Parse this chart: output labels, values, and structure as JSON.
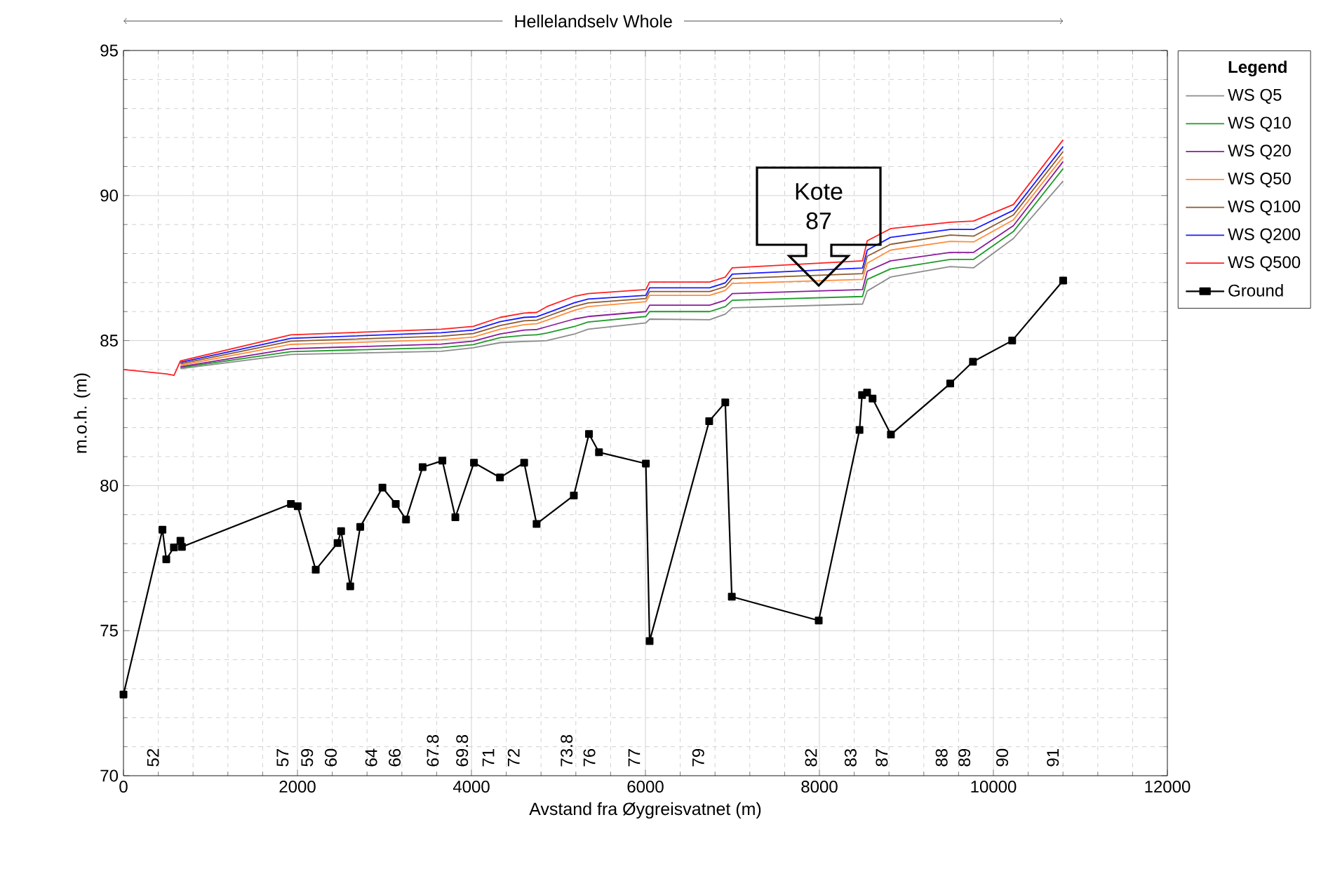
{
  "chart_data": {
    "type": "line",
    "title": "Hellelandselv Whole",
    "xlabel": "Avstand fra Øygreisvatnet (m)",
    "ylabel": "m.o.h. (m)",
    "legend_title": "Legend",
    "xlim": [
      0,
      12000
    ],
    "ylim": [
      70,
      95
    ],
    "xticks": [
      0,
      2000,
      4000,
      6000,
      8000,
      10000,
      12000
    ],
    "yticks": [
      70,
      75,
      80,
      85,
      90,
      95
    ],
    "grid": true,
    "legend": "right",
    "marker": "none",
    "line_style": "solid",
    "x": [
      0,
      494,
      581,
      655,
      1925,
      3652,
      4020,
      4330,
      4606,
      4749,
      4867,
      5178,
      5342,
      6005,
      6048,
      6739,
      6918,
      6998,
      8496,
      8550,
      8819,
      9504,
      9773,
      10230,
      10802
    ],
    "series": [
      {
        "name": "WS Q5",
        "color": "#8c8c8c",
        "values": [
          null,
          null,
          null,
          84.03,
          84.52,
          84.63,
          84.75,
          84.93,
          84.97,
          84.98,
          85.0,
          85.22,
          85.39,
          85.61,
          85.74,
          85.72,
          85.91,
          86.13,
          86.26,
          86.71,
          87.19,
          87.55,
          87.51,
          88.52,
          90.5
        ]
      },
      {
        "name": "WS Q10",
        "color": "#1f9a2a",
        "values": [
          null,
          null,
          null,
          84.07,
          84.62,
          84.76,
          84.86,
          85.1,
          85.18,
          85.2,
          85.26,
          85.48,
          85.64,
          85.83,
          86.0,
          86.0,
          86.17,
          86.39,
          86.52,
          87.11,
          87.47,
          87.8,
          87.8,
          88.76,
          90.93
        ]
      },
      {
        "name": "WS Q20",
        "color": "#8b1a9b",
        "values": [
          null,
          null,
          null,
          84.1,
          84.72,
          84.88,
          84.98,
          85.23,
          85.36,
          85.38,
          85.48,
          85.74,
          85.83,
          86.0,
          86.22,
          86.22,
          86.39,
          86.62,
          86.76,
          87.39,
          87.75,
          88.04,
          88.04,
          88.96,
          91.17
        ]
      },
      {
        "name": "WS Q50",
        "color": "#ff8c3c",
        "values": [
          null,
          null,
          null,
          84.15,
          84.87,
          85.03,
          85.12,
          85.39,
          85.55,
          85.58,
          85.7,
          86.04,
          86.17,
          86.34,
          86.56,
          86.56,
          86.73,
          86.97,
          87.11,
          87.67,
          88.12,
          88.42,
          88.4,
          89.16,
          91.34
        ]
      },
      {
        "name": "WS Q100",
        "color": "#8b5a2b",
        "values": [
          null,
          null,
          null,
          84.2,
          84.98,
          85.15,
          85.24,
          85.52,
          85.68,
          85.7,
          85.83,
          86.17,
          86.3,
          86.45,
          86.69,
          86.69,
          86.86,
          87.14,
          87.31,
          87.91,
          88.32,
          88.64,
          88.6,
          89.33,
          91.52
        ]
      },
      {
        "name": "WS Q200",
        "color": "#1a1aff",
        "values": [
          null,
          null,
          null,
          84.25,
          85.08,
          85.27,
          85.36,
          85.65,
          85.8,
          85.82,
          85.95,
          86.3,
          86.43,
          86.56,
          86.82,
          86.82,
          86.99,
          87.29,
          87.5,
          88.12,
          88.56,
          88.83,
          88.83,
          89.49,
          91.69
        ]
      },
      {
        "name": "WS Q500",
        "color": "#ff2020",
        "values": [
          84.0,
          83.85,
          83.8,
          84.3,
          85.2,
          85.39,
          85.49,
          85.8,
          85.95,
          85.97,
          86.17,
          86.52,
          86.62,
          86.76,
          87.02,
          87.02,
          87.19,
          87.51,
          87.75,
          88.44,
          88.86,
          89.08,
          89.12,
          89.69,
          91.92
        ]
      },
      {
        "name": "Ground",
        "color": "#000000",
        "marker": "square",
        "x": [
          0,
          448,
          492,
          580,
          655,
          672,
          1925,
          2003,
          2210,
          2461,
          2502,
          2607,
          2722,
          2977,
          3130,
          3248,
          3439,
          3666,
          3815,
          4029,
          4328,
          4606,
          4749,
          5177,
          5351,
          5466,
          6005,
          6048,
          6733,
          6918,
          6993,
          7992,
          8461,
          8490,
          8548,
          8611,
          8822,
          9504,
          9765,
          10216,
          10802
        ],
        "values": [
          72.8,
          78.48,
          77.46,
          77.87,
          78.1,
          77.89,
          79.37,
          79.29,
          77.1,
          78.02,
          78.43,
          76.53,
          78.58,
          79.93,
          79.37,
          78.83,
          80.64,
          80.86,
          78.91,
          80.79,
          80.28,
          80.79,
          78.68,
          79.66,
          81.78,
          81.15,
          80.76,
          74.64,
          82.22,
          82.87,
          76.17,
          75.35,
          81.92,
          83.12,
          83.21,
          83.0,
          81.76,
          83.52,
          84.27,
          85.0,
          87.07
        ]
      }
    ],
    "annotations": [
      "Kote 87",
      "52",
      "57",
      "59",
      "60",
      "64",
      "66",
      "67.8",
      "69.8",
      "71",
      "72",
      "73.8",
      "76",
      "77",
      "79",
      "82",
      "83",
      "87",
      "88",
      "89",
      "90",
      "91"
    ]
  }
}
